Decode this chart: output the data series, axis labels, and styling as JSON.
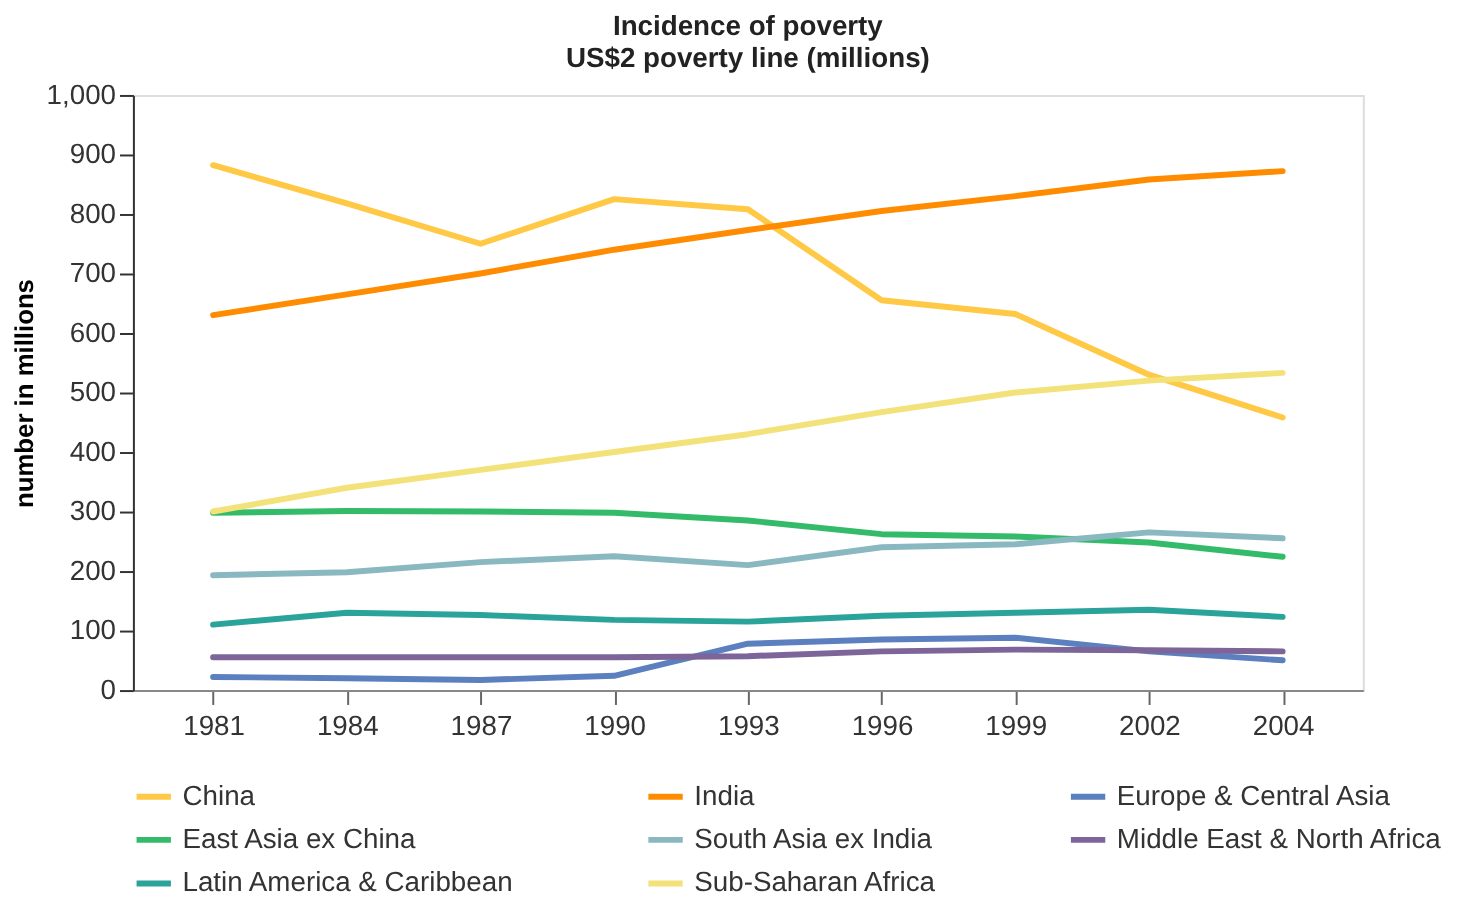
{
  "chart_data": {
    "type": "line",
    "title": [
      "Incidence of poverty",
      "US$2 poverty line (millions)"
    ],
    "ylabel": "number in millions",
    "categories": [
      "1981",
      "1984",
      "1987",
      "1990",
      "1993",
      "1996",
      "1999",
      "2002",
      "2004"
    ],
    "ylim": [
      0,
      1000
    ],
    "yticks": [
      0,
      {
        "value": 100,
        "label": "100"
      },
      200,
      300,
      400,
      500,
      600,
      700,
      800,
      900,
      {
        "value": 1000,
        "label": "1,000"
      }
    ],
    "grid": false,
    "legend": "bottom",
    "marker": "none",
    "line_style": "solid",
    "series": [
      {
        "name": "China",
        "color": "#ffc845",
        "values": [
          882,
          818,
          750,
          825,
          808,
          655,
          632,
          530,
          458
        ]
      },
      {
        "name": "India",
        "color": "#ff8c00",
        "values": [
          630,
          665,
          700,
          740,
          773,
          805,
          830,
          858,
          872
        ]
      },
      {
        "name": "Europe & Central Asia",
        "color": "#5b7fbf",
        "values": [
          22,
          20,
          17,
          24,
          78,
          85,
          88,
          65,
          50
        ]
      },
      {
        "name": "East Asia ex China",
        "color": "#33bb6a",
        "values": [
          298,
          301,
          300,
          298,
          285,
          262,
          258,
          248,
          224
        ]
      },
      {
        "name": "South Asia ex India",
        "color": "#8ab8c0",
        "values": [
          193,
          198,
          215,
          225,
          210,
          240,
          245,
          265,
          255
        ]
      },
      {
        "name": "Middle East & North Africa",
        "color": "#7d6599",
        "values": [
          55,
          55,
          55,
          55,
          57,
          65,
          68,
          67,
          65
        ]
      },
      {
        "name": "Latin America & Caribbean",
        "color": "#2aa39a",
        "values": [
          110,
          130,
          126,
          118,
          115,
          125,
          130,
          135,
          123
        ]
      },
      {
        "name": "Sub-Saharan Africa",
        "color": "#f3e27a",
        "values": [
          300,
          340,
          370,
          400,
          430,
          467,
          500,
          520,
          533
        ]
      }
    ]
  }
}
